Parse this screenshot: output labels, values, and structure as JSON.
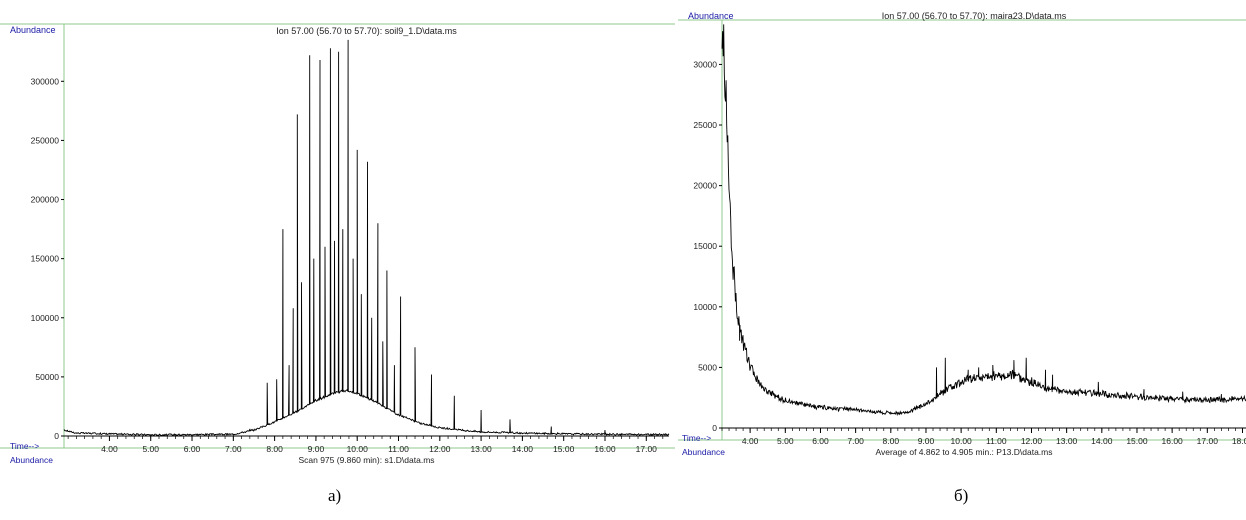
{
  "figure": {
    "panel_labels": [
      "а)",
      "б)"
    ]
  },
  "chart_data": [
    {
      "type": "line",
      "title": "Ion 57.00 (56.70 to 57.70): soil9_1.D\\data.ms",
      "ylabel": "Abundance",
      "xlabel": "Time-->",
      "footer_left": "Abundance",
      "footer_center": "Scan 975 (9.860 min): s1.D\\data.ms",
      "xlim": [
        2.9,
        17.55
      ],
      "ylim": [
        0,
        340000
      ],
      "x_ticks": [
        "4.00",
        "5.00",
        "6.00",
        "7.00",
        "8.00",
        "9.00",
        "10.00",
        "11.00",
        "12.00",
        "13.00",
        "14.00",
        "15.00",
        "16.00",
        "17.00"
      ],
      "y_ticks": [
        "0",
        "50000",
        "100000",
        "150000",
        "200000",
        "250000",
        "300000"
      ],
      "colors": {
        "axis_label": "#1a1aa6",
        "trace": "#000000",
        "frame": "#8fc98f"
      },
      "series": [
        {
          "baseline": [
            [
              2.9,
              5000
            ],
            [
              3.2,
              2500
            ],
            [
              5.0,
              1000
            ],
            [
              7.0,
              1500
            ],
            [
              7.5,
              5000
            ],
            [
              8.0,
              12000
            ],
            [
              8.5,
              20000
            ],
            [
              9.0,
              30000
            ],
            [
              9.5,
              37000
            ],
            [
              9.75,
              38000
            ],
            [
              10.0,
              36000
            ],
            [
              10.5,
              28000
            ],
            [
              11.0,
              18000
            ],
            [
              11.5,
              11000
            ],
            [
              12.0,
              7000
            ],
            [
              12.5,
              5000
            ],
            [
              13.0,
              3500
            ],
            [
              14.0,
              2500
            ],
            [
              15.0,
              1800
            ],
            [
              16.0,
              1500
            ],
            [
              17.55,
              1200
            ]
          ],
          "peaks": [
            [
              7.4,
              6000
            ],
            [
              7.82,
              45000
            ],
            [
              8.05,
              48000
            ],
            [
              8.2,
              175000
            ],
            [
              8.35,
              60000
            ],
            [
              8.45,
              108000
            ],
            [
              8.55,
              272000
            ],
            [
              8.65,
              130000
            ],
            [
              8.85,
              322000
            ],
            [
              8.95,
              150000
            ],
            [
              9.1,
              318000
            ],
            [
              9.22,
              160000
            ],
            [
              9.35,
              328000
            ],
            [
              9.45,
              165000
            ],
            [
              9.55,
              325000
            ],
            [
              9.65,
              175000
            ],
            [
              9.78,
              335000
            ],
            [
              9.9,
              150000
            ],
            [
              10.0,
              242000
            ],
            [
              10.1,
              120000
            ],
            [
              10.25,
              232000
            ],
            [
              10.35,
              100000
            ],
            [
              10.5,
              180000
            ],
            [
              10.62,
              80000
            ],
            [
              10.72,
              140000
            ],
            [
              10.9,
              60000
            ],
            [
              11.05,
              118000
            ],
            [
              11.4,
              75000
            ],
            [
              11.8,
              52000
            ],
            [
              12.35,
              34000
            ],
            [
              13.0,
              22000
            ],
            [
              13.7,
              14000
            ],
            [
              14.7,
              8000
            ],
            [
              16.0,
              5000
            ]
          ]
        }
      ]
    },
    {
      "type": "line",
      "title": "Ion 57.00 (56.70 to 57.70): maira23.D\\data.ms",
      "ylabel": "Abundance",
      "xlabel": "Time-->",
      "footer_left": "Abundance",
      "footer_center": "Average of 4.862 to 4.905 min.: P13.D\\data.ms",
      "xlim": [
        3.2,
        18.1
      ],
      "ylim": [
        0,
        33500
      ],
      "x_ticks": [
        "4.00",
        "5.00",
        "6.00",
        "7.00",
        "8.00",
        "9.00",
        "10.00",
        "11.00",
        "12.00",
        "13.00",
        "14.00",
        "15.00",
        "16.00",
        "17.00",
        "18.00"
      ],
      "y_ticks": [
        "0",
        "5000",
        "10000",
        "15000",
        "20000",
        "25000",
        "30000"
      ],
      "colors": {
        "axis_label": "#1a1aa6",
        "trace": "#000000",
        "frame": "#8fc98f"
      },
      "series": [
        {
          "baseline": [
            [
              3.25,
              32000
            ],
            [
              3.3,
              28000
            ],
            [
              3.4,
              20000
            ],
            [
              3.5,
              14000
            ],
            [
              3.6,
              10500
            ],
            [
              3.75,
              7500
            ],
            [
              4.0,
              5000
            ],
            [
              4.3,
              3500
            ],
            [
              4.7,
              2600
            ],
            [
              5.2,
              2100
            ],
            [
              6.0,
              1700
            ],
            [
              7.0,
              1500
            ],
            [
              8.0,
              1200
            ],
            [
              8.5,
              1300
            ],
            [
              9.0,
              2000
            ],
            [
              9.5,
              3000
            ],
            [
              10.0,
              3800
            ],
            [
              10.5,
              4200
            ],
            [
              11.0,
              4300
            ],
            [
              11.5,
              4400
            ],
            [
              12.0,
              3800
            ],
            [
              12.5,
              3200
            ],
            [
              13.0,
              3000
            ],
            [
              14.0,
              2800
            ],
            [
              15.0,
              2600
            ],
            [
              16.0,
              2400
            ],
            [
              17.0,
              2300
            ],
            [
              18.1,
              2400
            ]
          ],
          "peaks": [
            [
              3.7,
              7200
            ],
            [
              9.3,
              5000
            ],
            [
              9.55,
              5800
            ],
            [
              10.2,
              4800
            ],
            [
              10.5,
              5000
            ],
            [
              10.9,
              5200
            ],
            [
              11.5,
              5600
            ],
            [
              11.85,
              5800
            ],
            [
              12.4,
              4800
            ],
            [
              12.6,
              4400
            ],
            [
              13.9,
              3800
            ],
            [
              15.2,
              3200
            ],
            [
              16.3,
              3000
            ],
            [
              17.4,
              2800
            ]
          ]
        }
      ]
    }
  ]
}
